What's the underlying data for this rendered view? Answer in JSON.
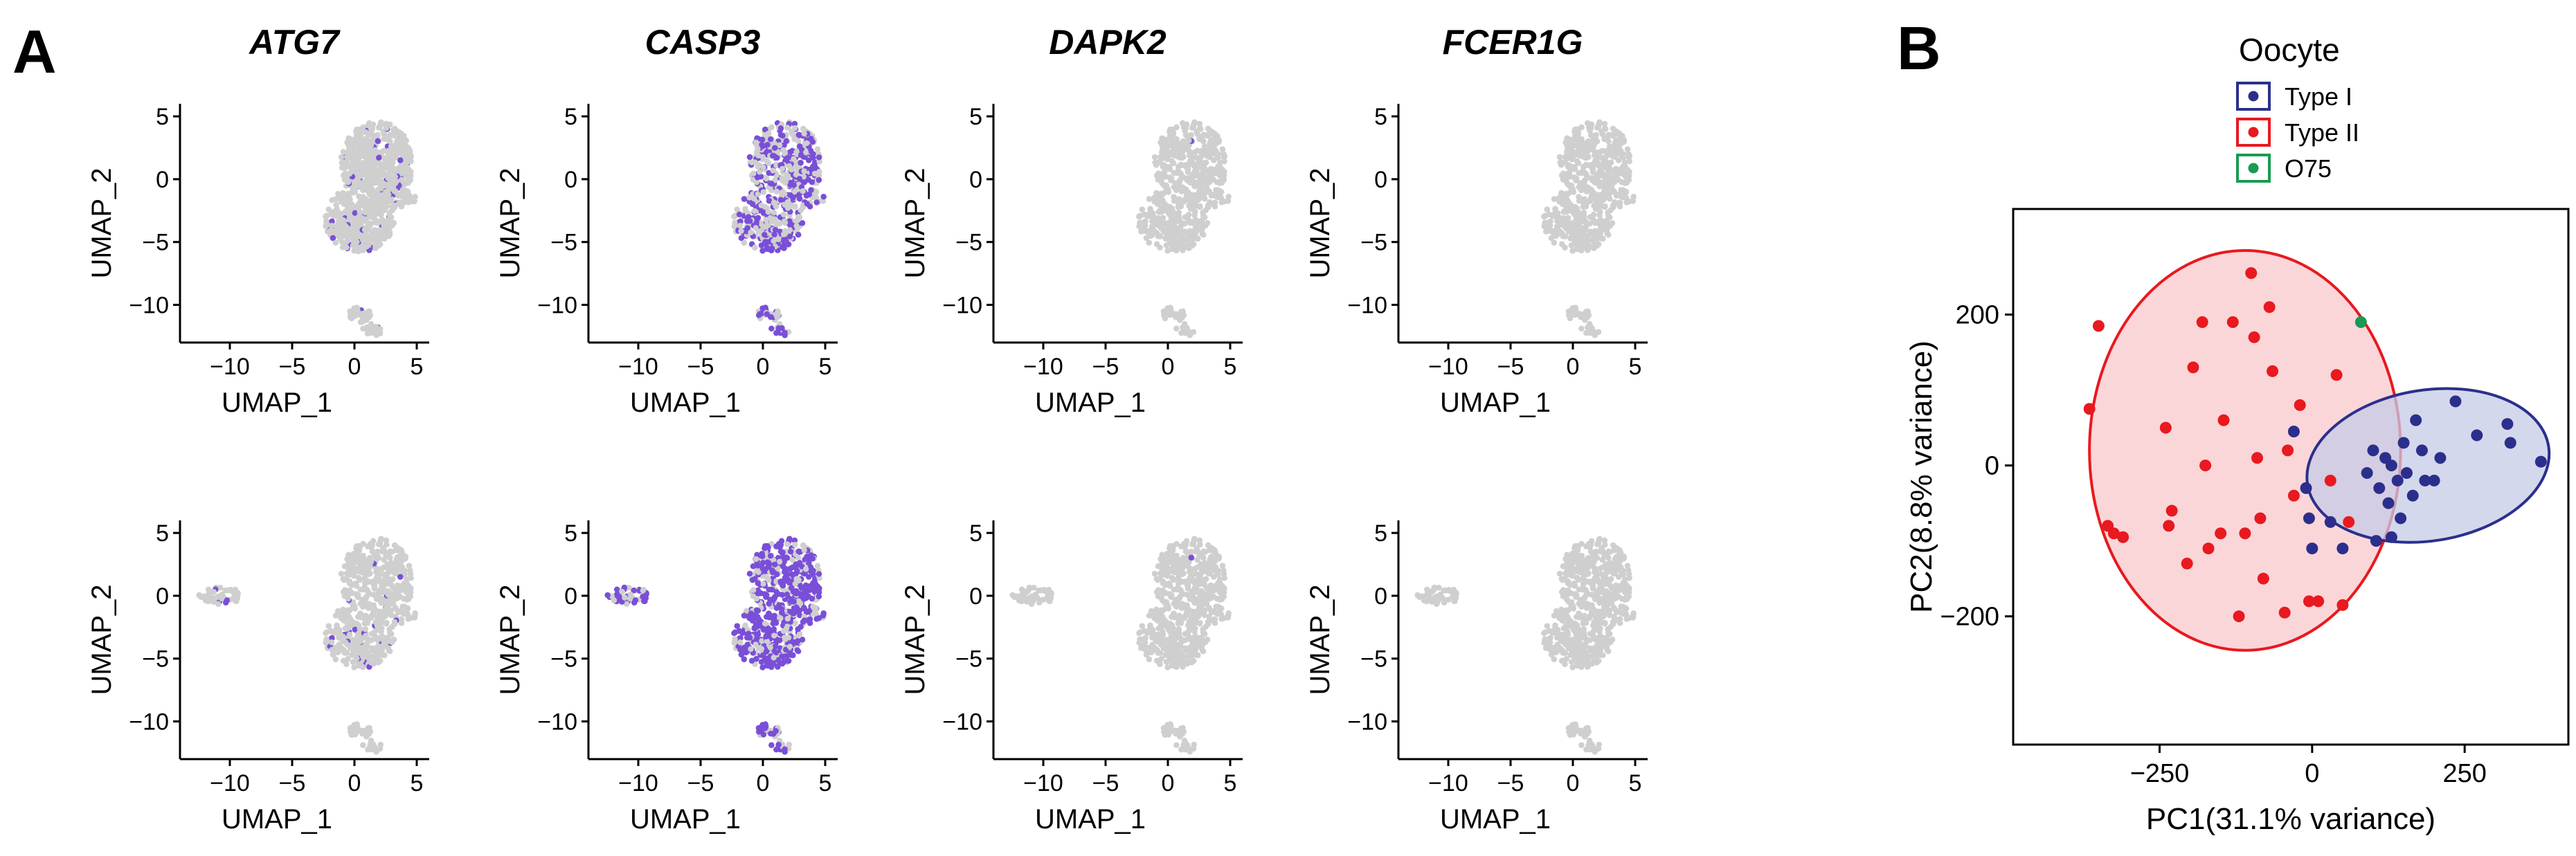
{
  "panels": {
    "a_label": "A",
    "b_label": "B"
  },
  "umap": {
    "genes": [
      "ATG7",
      "CASP3",
      "DAPK2",
      "FCER1G"
    ],
    "rows": [
      "top",
      "bottom"
    ],
    "xlabel": "UMAP_1",
    "ylabel": "UMAP_2",
    "xticks": [
      -10,
      -5,
      0,
      5
    ],
    "yticks": [
      5,
      0,
      -5,
      -10
    ],
    "xlim": [
      -14,
      6
    ],
    "ylim": [
      -13,
      6
    ],
    "base_color": "#cfcfcf",
    "expr_color": "#7a4fd8",
    "expression_level": {
      "ATG7": [
        0.05,
        0.04
      ],
      "CASP3": [
        0.45,
        0.65
      ],
      "DAPK2": [
        0.003,
        0.003
      ],
      "FCER1G": [
        0.002,
        0.002
      ]
    }
  },
  "chart_data": {
    "type": "scatter",
    "xlabel": "PC1(31.1% variance)",
    "ylabel": "PC2(8.8% variance)",
    "xlim": [
      -490,
      420
    ],
    "ylim": [
      -370,
      340
    ],
    "xticks": [
      -250,
      0,
      250
    ],
    "yticks": [
      200,
      0,
      -200
    ],
    "legend": {
      "title": "Oocyte",
      "placement": "top"
    },
    "series": [
      {
        "name": "Type I",
        "color": "#2b2f8c",
        "points": [
          [
            90,
            -10
          ],
          [
            100,
            20
          ],
          [
            110,
            -30
          ],
          [
            120,
            10
          ],
          [
            125,
            -50
          ],
          [
            130,
            0
          ],
          [
            140,
            -20
          ],
          [
            145,
            -70
          ],
          [
            150,
            30
          ],
          [
            155,
            -10
          ],
          [
            165,
            -40
          ],
          [
            170,
            60
          ],
          [
            180,
            20
          ],
          [
            185,
            -20
          ],
          [
            200,
            -20
          ],
          [
            210,
            10
          ],
          [
            235,
            85
          ],
          [
            270,
            40
          ],
          [
            320,
            55
          ],
          [
            325,
            30
          ],
          [
            375,
            5
          ],
          [
            30,
            -75
          ],
          [
            -5,
            -70
          ],
          [
            -30,
            45
          ],
          [
            105,
            -100
          ],
          [
            130,
            -95
          ],
          [
            50,
            -110
          ],
          [
            0,
            -110
          ],
          [
            -10,
            -30
          ]
        ]
      },
      {
        "name": "Type II",
        "color": "#e8191f",
        "points": [
          [
            -350,
            185
          ],
          [
            -365,
            75
          ],
          [
            -335,
            -80
          ],
          [
            -325,
            -90
          ],
          [
            -310,
            -95
          ],
          [
            -240,
            50
          ],
          [
            -230,
            -60
          ],
          [
            -235,
            -80
          ],
          [
            -195,
            130
          ],
          [
            -180,
            190
          ],
          [
            -175,
            0
          ],
          [
            -170,
            -110
          ],
          [
            -130,
            190
          ],
          [
            -145,
            60
          ],
          [
            -100,
            255
          ],
          [
            -95,
            170
          ],
          [
            -90,
            10
          ],
          [
            -85,
            -70
          ],
          [
            -80,
            -150
          ],
          [
            -65,
            125
          ],
          [
            -40,
            20
          ],
          [
            -30,
            -40
          ],
          [
            -110,
            -90
          ],
          [
            -150,
            -90
          ],
          [
            -120,
            -200
          ],
          [
            -45,
            -195
          ],
          [
            10,
            -180
          ],
          [
            -5,
            -180
          ],
          [
            40,
            120
          ],
          [
            30,
            -20
          ],
          [
            60,
            -75
          ],
          [
            50,
            -185
          ],
          [
            -70,
            210
          ],
          [
            -205,
            -130
          ],
          [
            -20,
            80
          ]
        ]
      },
      {
        "name": "O75",
        "color": "#1a9a52",
        "points": [
          [
            80,
            190
          ]
        ]
      }
    ],
    "ellipses": [
      {
        "series": "Type II",
        "cx": -110,
        "cy": 20,
        "rx": 255,
        "ry": 265,
        "angle_deg": 0,
        "fill": "#f9c8cc",
        "stroke": "#e8191f"
      },
      {
        "series": "Type I",
        "cx": 190,
        "cy": 0,
        "rx": 200,
        "ry": 100,
        "angle_deg": 9,
        "fill": "#c5cbe6",
        "stroke": "#2b2f8c"
      }
    ]
  }
}
